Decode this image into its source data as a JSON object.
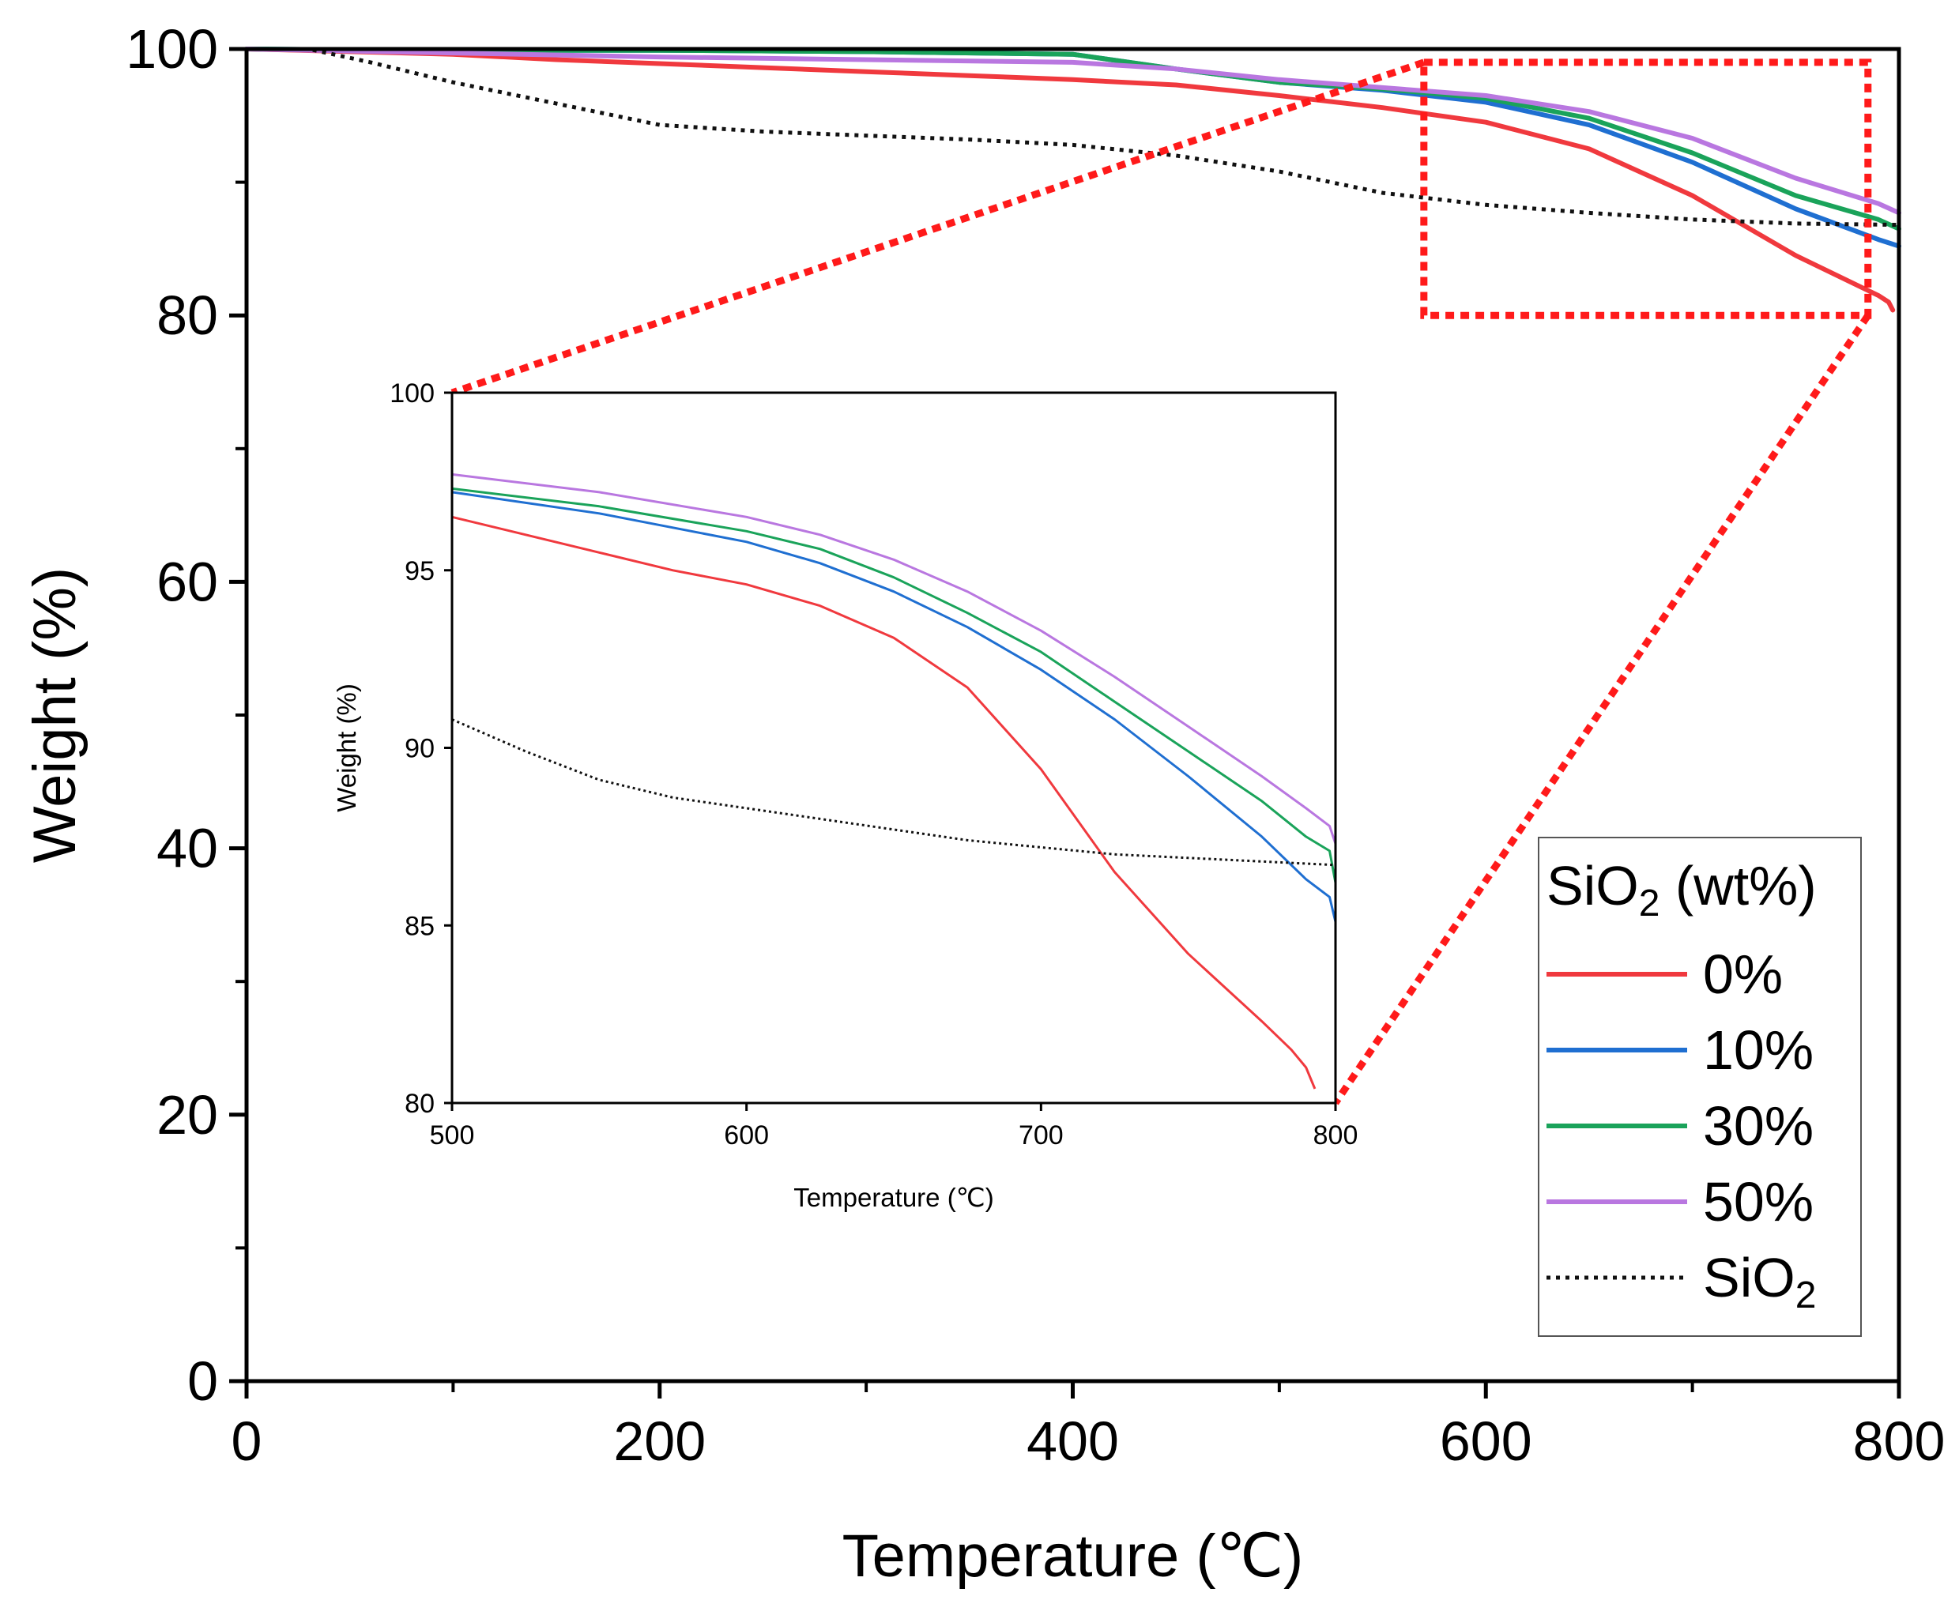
{
  "chart_data": [
    {
      "id": "main",
      "type": "line",
      "title": "",
      "xlabel": "Temperature (℃)",
      "ylabel": "Weight (%)",
      "xlim": [
        0,
        800
      ],
      "ylim": [
        0,
        100
      ],
      "xticks": [
        0,
        200,
        400,
        600,
        800
      ],
      "yticks": [
        0,
        20,
        40,
        60,
        80,
        100
      ],
      "grid": false,
      "legend": {
        "title_main": "SiO",
        "title_sub": "2",
        "title_suffix": " (wt%)",
        "placement": "bottom-right",
        "entries": [
          {
            "label": "0%",
            "sub": "",
            "series": "0%"
          },
          {
            "label": "10%",
            "sub": "",
            "series": "10%"
          },
          {
            "label": "30%",
            "sub": "",
            "series": "30%"
          },
          {
            "label": "50%",
            "sub": "",
            "series": "50%"
          },
          {
            "label": "SiO",
            "sub": "2",
            "series": "SiO2"
          }
        ]
      },
      "zoom_box": {
        "x": [
          570,
          785
        ],
        "y": [
          80,
          99
        ]
      },
      "series": [
        {
          "name": "0%",
          "color": "#f0393e",
          "dash": false,
          "x": [
            0,
            100,
            150,
            200,
            250,
            300,
            350,
            400,
            450,
            500,
            550,
            600,
            650,
            700,
            750,
            790,
            795,
            797
          ],
          "y": [
            100,
            99.6,
            99.2,
            98.9,
            98.6,
            98.3,
            98.0,
            97.7,
            97.3,
            96.5,
            95.6,
            94.5,
            92.5,
            89.0,
            84.5,
            81.5,
            81.0,
            80.4
          ]
        },
        {
          "name": "10%",
          "color": "#1f6fd1",
          "dash": false,
          "x": [
            0,
            100,
            200,
            300,
            400,
            450,
            500,
            550,
            600,
            650,
            700,
            750,
            790,
            800
          ],
          "y": [
            100,
            99.9,
            99.9,
            99.8,
            99.6,
            98.5,
            97.5,
            96.9,
            96.0,
            94.3,
            91.5,
            88.0,
            85.7,
            85.2
          ]
        },
        {
          "name": "30%",
          "color": "#1aa35a",
          "dash": false,
          "x": [
            0,
            100,
            200,
            300,
            400,
            450,
            500,
            550,
            600,
            650,
            700,
            750,
            790,
            800
          ],
          "y": [
            100,
            99.9,
            99.9,
            99.8,
            99.6,
            98.5,
            97.5,
            97.0,
            96.3,
            94.8,
            92.2,
            89.0,
            87.2,
            86.5
          ]
        },
        {
          "name": "50%",
          "color": "#b977e0",
          "dash": false,
          "x": [
            0,
            100,
            200,
            300,
            400,
            450,
            500,
            550,
            600,
            650,
            700,
            750,
            790,
            800
          ],
          "y": [
            100,
            99.7,
            99.4,
            99.2,
            99.0,
            98.5,
            97.7,
            97.1,
            96.5,
            95.3,
            93.3,
            90.3,
            88.4,
            87.7
          ]
        },
        {
          "name": "SiO2",
          "color": "#111111",
          "dash": true,
          "x": [
            0,
            30,
            60,
            100,
            150,
            200,
            250,
            300,
            350,
            400,
            450,
            500,
            550,
            600,
            650,
            700,
            750,
            800
          ],
          "y": [
            100,
            100,
            99.0,
            97.5,
            95.9,
            94.3,
            93.8,
            93.5,
            93.2,
            92.8,
            92.0,
            90.8,
            89.2,
            88.3,
            87.7,
            87.2,
            86.9,
            86.8
          ]
        }
      ]
    },
    {
      "id": "inset",
      "type": "line",
      "title": "",
      "xlabel": "Temperature (℃)",
      "ylabel": "Weight (%)",
      "xlim": [
        500,
        800
      ],
      "ylim": [
        80,
        100
      ],
      "xticks": [
        500,
        600,
        700,
        800
      ],
      "yticks": [
        80,
        85,
        90,
        95,
        100
      ],
      "grid": false,
      "series": [
        {
          "name": "0%",
          "color": "#f0393e",
          "dash": false,
          "x": [
            500,
            525,
            550,
            575,
            600,
            625,
            650,
            675,
            700,
            725,
            750,
            775,
            785,
            790,
            793
          ],
          "y": [
            96.5,
            96.0,
            95.5,
            95.0,
            94.6,
            94.0,
            93.1,
            91.7,
            89.4,
            86.5,
            84.2,
            82.3,
            81.5,
            81.0,
            80.4
          ]
        },
        {
          "name": "10%",
          "color": "#1f6fd1",
          "dash": false,
          "x": [
            500,
            550,
            600,
            625,
            650,
            675,
            700,
            725,
            750,
            775,
            790,
            798,
            800
          ],
          "y": [
            97.2,
            96.6,
            95.8,
            95.2,
            94.4,
            93.4,
            92.2,
            90.8,
            89.2,
            87.5,
            86.3,
            85.8,
            85.1
          ]
        },
        {
          "name": "30%",
          "color": "#1aa35a",
          "dash": false,
          "x": [
            500,
            550,
            600,
            625,
            650,
            675,
            700,
            725,
            750,
            775,
            790,
            798,
            800
          ],
          "y": [
            97.3,
            96.8,
            96.1,
            95.6,
            94.8,
            93.8,
            92.7,
            91.3,
            89.9,
            88.5,
            87.5,
            87.1,
            86.2
          ]
        },
        {
          "name": "50%",
          "color": "#b977e0",
          "dash": false,
          "x": [
            500,
            550,
            600,
            625,
            650,
            675,
            700,
            725,
            750,
            775,
            790,
            798,
            800
          ],
          "y": [
            97.7,
            97.2,
            96.5,
            96.0,
            95.3,
            94.4,
            93.3,
            92.0,
            90.6,
            89.2,
            88.3,
            87.8,
            87.3
          ]
        },
        {
          "name": "SiO2",
          "color": "#111111",
          "dash": true,
          "x": [
            500,
            525,
            550,
            575,
            600,
            625,
            650,
            675,
            700,
            725,
            750,
            775,
            800
          ],
          "y": [
            90.8,
            89.9,
            89.1,
            88.6,
            88.3,
            88.0,
            87.7,
            87.4,
            87.2,
            87.0,
            86.9,
            86.8,
            86.7
          ]
        }
      ]
    }
  ]
}
